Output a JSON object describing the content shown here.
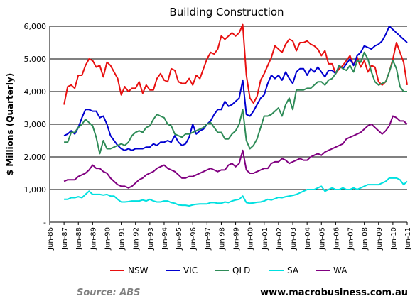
{
  "chart_data": {
    "type": "line",
    "title": "Building Construction",
    "ylabel": "$ Millions (Quarterly)",
    "xlabel": "",
    "ylim": [
      0,
      6000
    ],
    "yticks": [
      0,
      1000,
      2000,
      3000,
      4000,
      5000,
      6000
    ],
    "ytick_labels": [
      "-",
      "1,000",
      "2,000",
      "3,000",
      "4,000",
      "5,000",
      "6,000"
    ],
    "x_range": [
      1986.5,
      2011.5
    ],
    "x_ticks": [
      1986.5,
      1987.5,
      1988.5,
      1989.5,
      1990.5,
      1991.5,
      1992.5,
      1993.5,
      1994.5,
      1995.5,
      1996.5,
      1997.5,
      1998.5,
      1999.5,
      2000.5,
      2001.5,
      2002.5,
      2003.5,
      2004.5,
      2005.5,
      2006.5,
      2007.5,
      2008.5,
      2009.5,
      2010.5,
      2011.5
    ],
    "x_tick_labels": [
      "Jun-86",
      "Jun-87",
      "Jun-88",
      "Jun-89",
      "Jun-90",
      "Jun-91",
      "Jun-92",
      "Jun-93",
      "Jun-94",
      "Jun-95",
      "Jun-96",
      "Jun-97",
      "Jun-98",
      "Jun-99",
      "Jun-00",
      "Jun-01",
      "Jun-02",
      "Jun-03",
      "Jun-04",
      "Jun-05",
      "Jun-06",
      "Jun-07",
      "Jun-08",
      "Jun-09",
      "Jun-10",
      "Jun-11"
    ],
    "grid": "horizontal",
    "legend_position": "bottom",
    "x": [
      1987.5,
      1987.75,
      1988.0,
      1988.25,
      1988.5,
      1988.75,
      1989.0,
      1989.25,
      1989.5,
      1989.75,
      1990.0,
      1990.25,
      1990.5,
      1990.75,
      1991.0,
      1991.25,
      1991.5,
      1991.75,
      1992.0,
      1992.25,
      1992.5,
      1992.75,
      1993.0,
      1993.25,
      1993.5,
      1993.75,
      1994.0,
      1994.25,
      1994.5,
      1994.75,
      1995.0,
      1995.25,
      1995.5,
      1995.75,
      1996.0,
      1996.25,
      1996.5,
      1996.75,
      1997.0,
      1997.25,
      1997.5,
      1997.75,
      1998.0,
      1998.25,
      1998.5,
      1998.75,
      1999.0,
      1999.25,
      1999.5,
      1999.75,
      2000.0,
      2000.25,
      2000.5,
      2000.75,
      2001.0,
      2001.25,
      2001.5,
      2001.75,
      2002.0,
      2002.25,
      2002.5,
      2002.75,
      2003.0,
      2003.25,
      2003.5,
      2003.75,
      2004.0,
      2004.25,
      2004.5,
      2004.75,
      2005.0,
      2005.25,
      2005.5,
      2005.75,
      2006.0,
      2006.25,
      2006.5,
      2006.75,
      2007.0,
      2007.25,
      2007.5,
      2007.75,
      2008.0,
      2008.25,
      2008.5,
      2008.75,
      2009.0,
      2009.25,
      2009.5,
      2009.75,
      2010.0,
      2010.25,
      2010.5,
      2010.75,
      2011.0,
      2011.25,
      2011.5
    ],
    "series": [
      {
        "name": "NSW",
        "color": "#e81010",
        "values": [
          3600,
          4150,
          4200,
          4100,
          4500,
          4500,
          4800,
          5000,
          4950,
          4750,
          4800,
          4450,
          4900,
          4800,
          4600,
          4400,
          3900,
          4150,
          4000,
          4100,
          4100,
          4300,
          3950,
          4200,
          4050,
          4050,
          4400,
          4550,
          4350,
          4300,
          4700,
          4650,
          4300,
          4250,
          4250,
          4400,
          4200,
          4500,
          4400,
          4700,
          5000,
          5200,
          5150,
          5300,
          5700,
          5600,
          5700,
          5800,
          5700,
          5800,
          6050,
          4500,
          3800,
          3650,
          3850,
          4350,
          4550,
          4800,
          5050,
          5400,
          5300,
          5200,
          5450,
          5600,
          5550,
          5250,
          5500,
          5500,
          5550,
          5450,
          5400,
          5300,
          5100,
          5250,
          4850,
          4850,
          4550,
          4700,
          4800,
          4950,
          5100,
          4800,
          5050,
          4750,
          4950,
          4600,
          4800,
          4750,
          4300,
          4200,
          4300,
          4600,
          5000,
          5500,
          5200,
          4900,
          4200
        ]
      },
      {
        "name": "VIC",
        "color": "#0000d0",
        "values": [
          2650,
          2700,
          2800,
          2700,
          2900,
          3200,
          3450,
          3450,
          3400,
          3400,
          3200,
          3250,
          3000,
          2650,
          2500,
          2350,
          2250,
          2200,
          2250,
          2200,
          2250,
          2250,
          2250,
          2300,
          2300,
          2400,
          2350,
          2450,
          2450,
          2500,
          2450,
          2650,
          2450,
          2350,
          2400,
          2600,
          3000,
          2700,
          2800,
          2850,
          3000,
          3100,
          3300,
          3450,
          3450,
          3700,
          3550,
          3600,
          3700,
          3800,
          4350,
          3300,
          3250,
          3400,
          3600,
          3800,
          3900,
          4250,
          4500,
          4400,
          4500,
          4350,
          4600,
          4400,
          4250,
          4600,
          4700,
          4700,
          4500,
          4700,
          4600,
          4750,
          4600,
          4450,
          4650,
          4650,
          4550,
          4800,
          4700,
          4850,
          5000,
          4800,
          5100,
          5200,
          5400,
          5350,
          5300,
          5400,
          5450,
          5550,
          5750,
          6000,
          5900,
          5800,
          5700,
          5600,
          5500
        ]
      },
      {
        "name": "QLD",
        "color": "#2e8b57",
        "values": [
          2450,
          2450,
          2750,
          2750,
          2900,
          3000,
          3150,
          3050,
          2950,
          2600,
          2100,
          2500,
          2250,
          2250,
          2300,
          2350,
          2400,
          2350,
          2450,
          2650,
          2750,
          2800,
          2750,
          2900,
          2950,
          3150,
          3300,
          3250,
          3200,
          3000,
          2950,
          2700,
          2650,
          2600,
          2700,
          2700,
          2750,
          2800,
          2850,
          2900,
          3000,
          3050,
          2900,
          2750,
          2750,
          2550,
          2550,
          2700,
          2800,
          3000,
          3450,
          2500,
          2250,
          2350,
          2550,
          2900,
          3250,
          3250,
          3300,
          3400,
          3500,
          3250,
          3600,
          3800,
          3450,
          4050,
          4050,
          4050,
          4100,
          4100,
          4200,
          4300,
          4300,
          4200,
          4350,
          4400,
          4550,
          4800,
          4700,
          4650,
          4800,
          4600,
          4950,
          4900,
          5200,
          5000,
          4600,
          4300,
          4200,
          4250,
          4300,
          4600,
          4950,
          4700,
          4150,
          4000,
          4000
        ]
      },
      {
        "name": "SA",
        "color": "#00e0e0",
        "values": [
          700,
          700,
          750,
          750,
          780,
          750,
          850,
          950,
          850,
          850,
          850,
          830,
          850,
          800,
          800,
          700,
          620,
          620,
          630,
          650,
          650,
          650,
          680,
          650,
          700,
          650,
          620,
          620,
          650,
          650,
          600,
          580,
          530,
          520,
          520,
          500,
          530,
          550,
          560,
          560,
          560,
          600,
          600,
          580,
          580,
          620,
          600,
          650,
          680,
          700,
          800,
          600,
          580,
          590,
          610,
          620,
          650,
          700,
          680,
          720,
          760,
          750,
          780,
          800,
          820,
          850,
          900,
          950,
          1000,
          1000,
          1000,
          1050,
          1100,
          950,
          1000,
          1050,
          1000,
          1000,
          1050,
          1000,
          1000,
          1050,
          1000,
          1050,
          1100,
          1150,
          1150,
          1150,
          1150,
          1200,
          1250,
          1350,
          1350,
          1350,
          1300,
          1150,
          1250
        ]
      },
      {
        "name": "WA",
        "color": "#800080",
        "values": [
          1250,
          1300,
          1300,
          1300,
          1400,
          1450,
          1500,
          1600,
          1750,
          1650,
          1650,
          1550,
          1500,
          1350,
          1250,
          1150,
          1100,
          1100,
          1050,
          1100,
          1200,
          1300,
          1350,
          1450,
          1500,
          1550,
          1650,
          1700,
          1750,
          1650,
          1600,
          1550,
          1450,
          1350,
          1350,
          1400,
          1400,
          1450,
          1500,
          1550,
          1600,
          1650,
          1600,
          1550,
          1600,
          1600,
          1750,
          1800,
          1700,
          1800,
          2200,
          1600,
          1500,
          1500,
          1550,
          1600,
          1650,
          1650,
          1800,
          1850,
          1850,
          1950,
          1900,
          1800,
          1850,
          1900,
          1950,
          1900,
          1900,
          2000,
          2050,
          2100,
          2050,
          2150,
          2200,
          2250,
          2300,
          2350,
          2400,
          2550,
          2600,
          2650,
          2700,
          2750,
          2850,
          2950,
          3000,
          2900,
          2800,
          2700,
          2800,
          2950,
          3250,
          3200,
          3100,
          3100,
          3000
        ]
      }
    ]
  },
  "footer": {
    "source": "Source: ABS",
    "site": "www.macrobusiness.com.au"
  }
}
